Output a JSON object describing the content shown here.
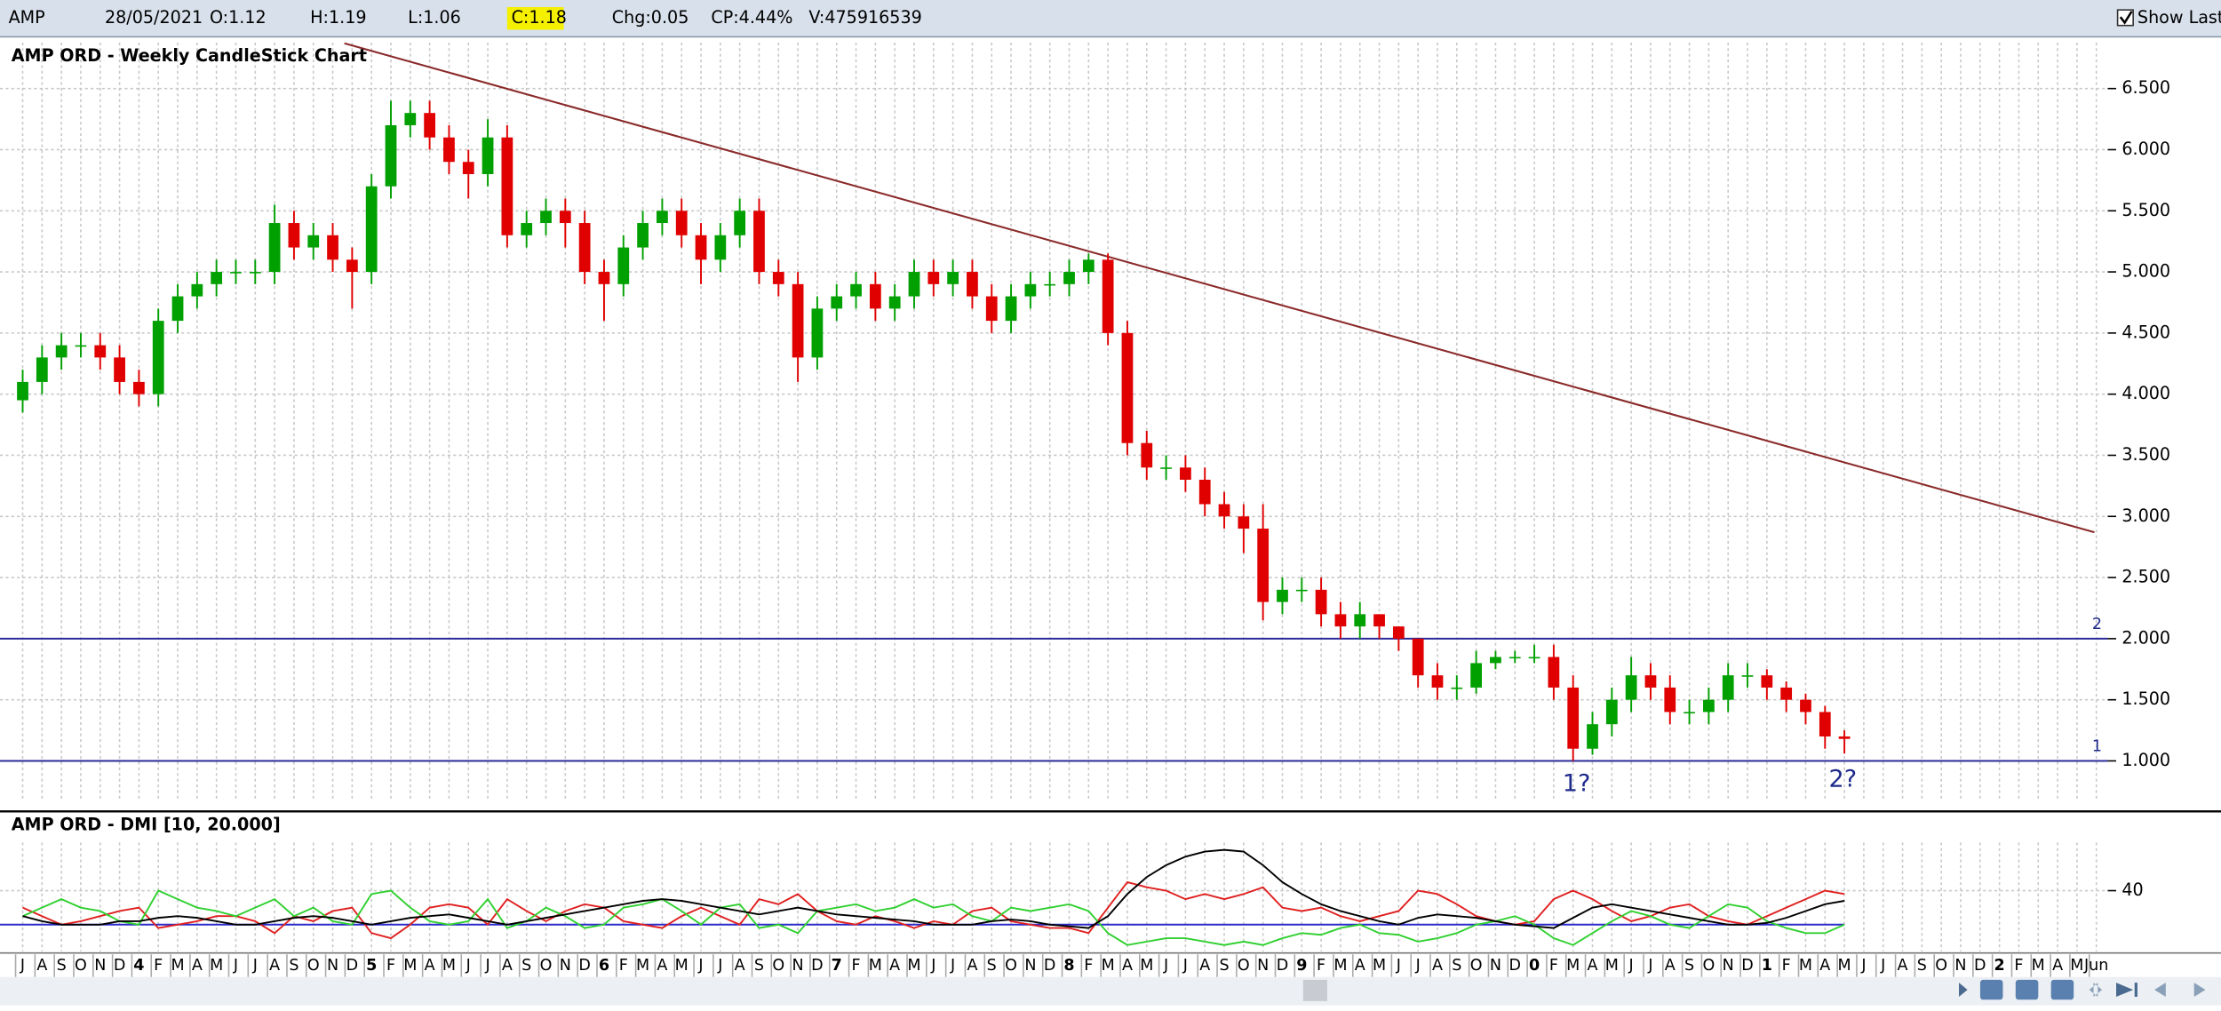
{
  "header": {
    "symbol": "AMP",
    "date": "28/05/2021",
    "open": "O:1.12",
    "high": "H:1.19",
    "low": "L:1.06",
    "close": "C:1.18",
    "change": "Chg:0.05",
    "change_percent": "CP:4.44%",
    "volume": "V:475916539",
    "show_last": "Show Last"
  },
  "chart_data": [
    {
      "type": "candlestick",
      "title": "AMP ORD - Weekly CandleStick Chart",
      "categories": [
        "J",
        "A",
        "S",
        "O",
        "N",
        "D",
        "4",
        "F",
        "M",
        "A",
        "M",
        "J",
        "J",
        "A",
        "S",
        "O",
        "N",
        "D",
        "5",
        "F",
        "M",
        "A",
        "M",
        "J",
        "J",
        "A",
        "S",
        "O",
        "N",
        "D",
        "6",
        "F",
        "M",
        "A",
        "M",
        "J",
        "J",
        "A",
        "S",
        "O",
        "N",
        "D",
        "7",
        "F",
        "M",
        "A",
        "M",
        "J",
        "J",
        "A",
        "S",
        "O",
        "N",
        "D",
        "8",
        "F",
        "M",
        "A",
        "M",
        "J",
        "J",
        "A",
        "S",
        "O",
        "N",
        "D",
        "9",
        "F",
        "M",
        "A",
        "M",
        "J",
        "J",
        "A",
        "S",
        "O",
        "N",
        "D",
        "0",
        "F",
        "M",
        "A",
        "M",
        "J",
        "J",
        "A",
        "S",
        "O",
        "N",
        "D",
        "1",
        "F",
        "M",
        "A",
        "M",
        "J",
        "J",
        "A",
        "S",
        "O",
        "N",
        "D",
        "2",
        "F",
        "M",
        "A",
        "M",
        "Jun"
      ],
      "open": [
        3.95,
        4.1,
        4.3,
        4.4,
        4.4,
        4.3,
        4.1,
        4.0,
        4.6,
        4.8,
        4.9,
        5.0,
        5.0,
        5.0,
        5.4,
        5.2,
        5.3,
        5.1,
        5.0,
        5.7,
        6.2,
        6.3,
        6.1,
        5.9,
        5.8,
        6.1,
        5.3,
        5.4,
        5.5,
        5.4,
        5.0,
        4.9,
        5.2,
        5.4,
        5.5,
        5.3,
        5.1,
        5.3,
        5.5,
        5.0,
        4.9,
        4.3,
        4.7,
        4.8,
        4.9,
        4.7,
        4.8,
        5.0,
        4.9,
        5.0,
        4.8,
        4.6,
        4.8,
        4.9,
        4.9,
        5.0,
        5.1,
        4.5,
        3.6,
        3.4,
        3.4,
        3.3,
        3.1,
        3.0,
        2.9,
        2.3,
        2.4,
        2.4,
        2.2,
        2.1,
        2.2,
        2.1,
        2.0,
        1.7,
        1.6,
        1.6,
        1.8,
        1.85,
        1.85,
        1.85,
        1.6,
        1.1,
        1.3,
        1.5,
        1.7,
        1.6,
        1.4,
        1.4,
        1.5,
        1.7,
        1.7,
        1.6,
        1.5,
        1.4,
        1.2,
        null,
        null,
        null,
        null,
        null,
        null,
        null,
        null,
        null,
        null,
        null,
        null,
        null
      ],
      "high": [
        4.2,
        4.4,
        4.5,
        4.5,
        4.5,
        4.4,
        4.2,
        4.7,
        4.9,
        5.0,
        5.1,
        5.1,
        5.1,
        5.55,
        5.5,
        5.4,
        5.4,
        5.2,
        5.8,
        6.4,
        6.4,
        6.4,
        6.2,
        6.0,
        6.25,
        6.2,
        5.5,
        5.6,
        5.6,
        5.5,
        5.1,
        5.3,
        5.5,
        5.6,
        5.6,
        5.4,
        5.4,
        5.6,
        5.6,
        5.1,
        5.0,
        4.8,
        4.9,
        5.0,
        5.0,
        4.9,
        5.1,
        5.1,
        5.1,
        5.1,
        4.9,
        4.9,
        5.0,
        5.0,
        5.1,
        5.15,
        5.15,
        4.6,
        3.7,
        3.5,
        3.5,
        3.4,
        3.2,
        3.1,
        3.1,
        2.5,
        2.5,
        2.5,
        2.3,
        2.3,
        2.2,
        2.1,
        2.0,
        1.8,
        1.7,
        1.9,
        1.9,
        1.9,
        1.95,
        1.95,
        1.7,
        1.4,
        1.6,
        1.85,
        1.8,
        1.7,
        1.5,
        1.6,
        1.8,
        1.8,
        1.75,
        1.65,
        1.55,
        1.45,
        1.25,
        null,
        null,
        null,
        null,
        null,
        null,
        null,
        null,
        null,
        null,
        null,
        null,
        null
      ],
      "low": [
        3.85,
        4.0,
        4.2,
        4.3,
        4.2,
        4.0,
        3.9,
        3.9,
        4.5,
        4.7,
        4.8,
        4.9,
        4.9,
        4.9,
        5.1,
        5.1,
        5.0,
        4.7,
        4.9,
        5.6,
        6.1,
        6.0,
        5.8,
        5.6,
        5.7,
        5.2,
        5.2,
        5.3,
        5.2,
        4.9,
        4.6,
        4.8,
        5.1,
        5.3,
        5.2,
        4.9,
        5.0,
        5.2,
        4.9,
        4.8,
        4.1,
        4.2,
        4.6,
        4.7,
        4.6,
        4.6,
        4.7,
        4.8,
        4.8,
        4.7,
        4.5,
        4.5,
        4.7,
        4.8,
        4.8,
        4.9,
        4.4,
        3.5,
        3.3,
        3.3,
        3.2,
        3.0,
        2.9,
        2.7,
        2.15,
        2.2,
        2.3,
        2.1,
        2.0,
        2.0,
        2.0,
        1.9,
        1.6,
        1.5,
        1.5,
        1.55,
        1.75,
        1.8,
        1.8,
        1.5,
        1.0,
        1.05,
        1.2,
        1.4,
        1.5,
        1.3,
        1.3,
        1.3,
        1.4,
        1.6,
        1.5,
        1.4,
        1.3,
        1.1,
        1.06,
        null,
        null,
        null,
        null,
        null,
        null,
        null,
        null,
        null,
        null,
        null,
        null,
        null
      ],
      "close": [
        4.1,
        4.3,
        4.4,
        4.4,
        4.3,
        4.1,
        4.0,
        4.6,
        4.8,
        4.9,
        5.0,
        5.0,
        5.0,
        5.4,
        5.2,
        5.3,
        5.1,
        5.0,
        5.7,
        6.2,
        6.3,
        6.1,
        5.9,
        5.8,
        6.1,
        5.3,
        5.4,
        5.5,
        5.4,
        5.0,
        4.9,
        5.2,
        5.4,
        5.5,
        5.3,
        5.1,
        5.3,
        5.5,
        5.0,
        4.9,
        4.3,
        4.7,
        4.8,
        4.9,
        4.7,
        4.8,
        5.0,
        4.9,
        5.0,
        4.8,
        4.6,
        4.8,
        4.9,
        4.9,
        5.0,
        5.1,
        4.5,
        3.6,
        3.4,
        3.4,
        3.3,
        3.1,
        3.0,
        2.9,
        2.3,
        2.4,
        2.4,
        2.2,
        2.1,
        2.2,
        2.1,
        2.0,
        1.7,
        1.6,
        1.6,
        1.8,
        1.85,
        1.85,
        1.85,
        1.6,
        1.1,
        1.3,
        1.5,
        1.7,
        1.6,
        1.4,
        1.4,
        1.5,
        1.7,
        1.7,
        1.6,
        1.5,
        1.4,
        1.2,
        1.18,
        null,
        null,
        null,
        null,
        null,
        null,
        null,
        null,
        null,
        null,
        null,
        null,
        null
      ],
      "up_color": "#00a000",
      "down_color": "#e00000",
      "ylim": [
        0.68,
        6.9
      ],
      "yticks": [
        {
          "value": 1,
          "label": "1.000"
        },
        {
          "value": 1.5,
          "label": "1.500"
        },
        {
          "value": 2,
          "label": "2.000"
        },
        {
          "value": 2.5,
          "label": "2.500"
        },
        {
          "value": 3,
          "label": "3.000"
        },
        {
          "value": 3.5,
          "label": "3.500"
        },
        {
          "value": 4,
          "label": "4.000"
        },
        {
          "value": 4.5,
          "label": "4.500"
        },
        {
          "value": 5,
          "label": "5.000"
        },
        {
          "value": 5.5,
          "label": "5.500"
        },
        {
          "value": 6,
          "label": "6.000"
        },
        {
          "value": 6.5,
          "label": "6.500"
        }
      ],
      "grid": true,
      "trendline": {
        "x": [
          16.6,
          106.9
        ],
        "y": [
          6.87,
          2.87
        ],
        "color": "#8b2a2a"
      },
      "levels": [
        {
          "value": 2,
          "label": "2"
        },
        {
          "value": 1,
          "label": "1"
        }
      ],
      "level_color": "#2a2a9a",
      "annotations": [
        "1?",
        "2?"
      ]
    },
    {
      "type": "line",
      "title": "AMP ORD - DMI [10, 20.000]",
      "series": [
        {
          "color": "#e02020",
          "values": [
            30,
            25,
            20,
            22,
            25,
            28,
            30,
            18,
            20,
            22,
            25,
            25,
            22,
            15,
            25,
            22,
            28,
            30,
            15,
            12,
            20,
            30,
            32,
            30,
            20,
            35,
            28,
            22,
            28,
            32,
            30,
            22,
            20,
            18,
            25,
            30,
            25,
            20,
            35,
            32,
            38,
            28,
            22,
            20,
            25,
            22,
            18,
            22,
            20,
            28,
            30,
            22,
            20,
            18,
            18,
            15,
            30,
            45,
            42,
            40,
            35,
            38,
            35,
            38,
            42,
            30,
            28,
            30,
            25,
            22,
            25,
            28,
            40,
            38,
            32,
            25,
            22,
            20,
            22,
            35,
            40,
            35,
            28,
            22,
            25,
            30,
            32,
            25,
            22,
            20,
            25,
            30,
            35,
            40,
            38,
            null,
            null,
            null,
            null,
            null,
            null,
            null,
            null,
            null,
            null,
            null,
            null,
            null
          ]
        },
        {
          "color": "#30d030",
          "values": [
            25,
            30,
            35,
            30,
            28,
            22,
            20,
            40,
            35,
            30,
            28,
            25,
            30,
            35,
            25,
            30,
            22,
            20,
            38,
            40,
            30,
            22,
            20,
            22,
            35,
            18,
            22,
            30,
            25,
            18,
            20,
            30,
            32,
            35,
            28,
            20,
            30,
            32,
            18,
            20,
            15,
            28,
            30,
            32,
            28,
            30,
            35,
            30,
            32,
            25,
            22,
            30,
            28,
            30,
            32,
            28,
            15,
            8,
            10,
            12,
            12,
            10,
            8,
            10,
            8,
            12,
            15,
            14,
            18,
            20,
            15,
            14,
            10,
            12,
            15,
            20,
            22,
            25,
            20,
            12,
            8,
            15,
            22,
            28,
            25,
            20,
            18,
            25,
            32,
            30,
            22,
            18,
            15,
            15,
            20,
            null,
            null,
            null,
            null,
            null,
            null,
            null,
            null,
            null,
            null,
            null,
            null,
            null
          ]
        },
        {
          "color": "#000000",
          "values": [
            25,
            22,
            20,
            20,
            20,
            22,
            22,
            24,
            25,
            24,
            22,
            20,
            20,
            22,
            24,
            25,
            24,
            22,
            20,
            22,
            24,
            25,
            26,
            24,
            22,
            20,
            22,
            24,
            26,
            28,
            30,
            32,
            34,
            35,
            34,
            32,
            30,
            28,
            26,
            28,
            30,
            28,
            26,
            25,
            24,
            23,
            22,
            20,
            20,
            20,
            22,
            23,
            22,
            20,
            19,
            18,
            25,
            38,
            48,
            55,
            60,
            63,
            64,
            63,
            55,
            45,
            38,
            32,
            28,
            25,
            22,
            20,
            24,
            26,
            25,
            24,
            22,
            20,
            19,
            18,
            24,
            30,
            32,
            30,
            28,
            26,
            24,
            22,
            20,
            20,
            21,
            24,
            28,
            32,
            34,
            null,
            null,
            null,
            null,
            null,
            null,
            null,
            null,
            null,
            null,
            null,
            null,
            null
          ]
        }
      ],
      "reference_line": 20,
      "reference_color": "#2a2acc",
      "ylim": [
        0,
        70
      ],
      "yticks": [
        40
      ],
      "grid": true
    }
  ]
}
